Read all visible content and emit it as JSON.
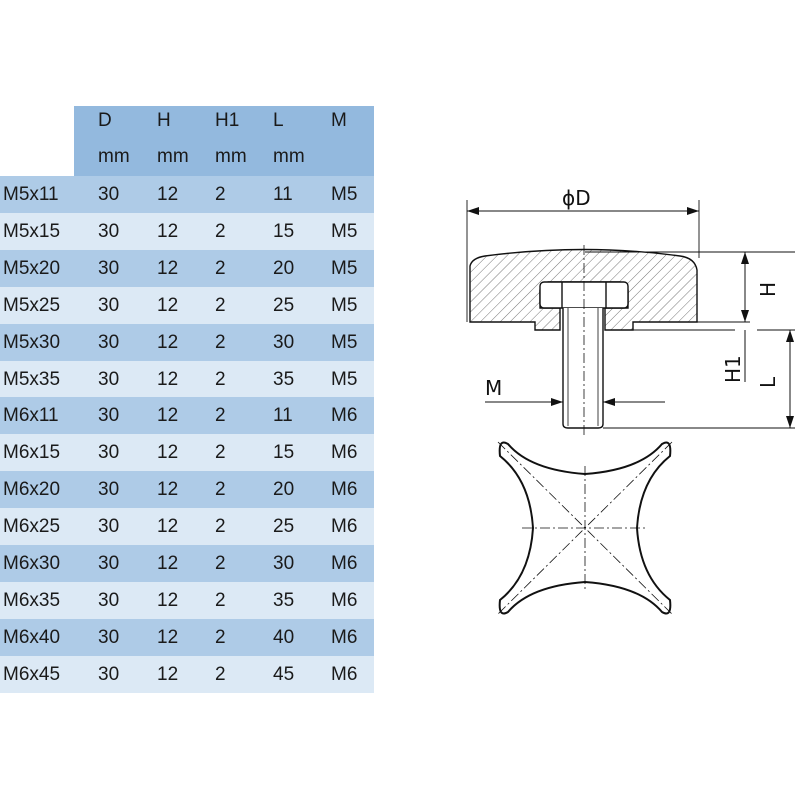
{
  "table": {
    "columns": [
      {
        "name": "D",
        "unit": "mm"
      },
      {
        "name": "H",
        "unit": "mm"
      },
      {
        "name": "H1",
        "unit": "mm"
      },
      {
        "name": "L",
        "unit": "mm"
      },
      {
        "name": "M",
        "unit": ""
      }
    ],
    "rows": [
      [
        "M5x11",
        "30",
        "12",
        "2",
        "11",
        "M5"
      ],
      [
        "M5x15",
        "30",
        "12",
        "2",
        "15",
        "M5"
      ],
      [
        "M5x20",
        "30",
        "12",
        "2",
        "20",
        "M5"
      ],
      [
        "M5x25",
        "30",
        "12",
        "2",
        "25",
        "M5"
      ],
      [
        "M5x30",
        "30",
        "12",
        "2",
        "30",
        "M5"
      ],
      [
        "M5x35",
        "30",
        "12",
        "2",
        "35",
        "M5"
      ],
      [
        "M6x11",
        "30",
        "12",
        "2",
        "11",
        "M6"
      ],
      [
        "M6x15",
        "30",
        "12",
        "2",
        "15",
        "M6"
      ],
      [
        "M6x20",
        "30",
        "12",
        "2",
        "20",
        "M6"
      ],
      [
        "M6x25",
        "30",
        "12",
        "2",
        "25",
        "M6"
      ],
      [
        "M6x30",
        "30",
        "12",
        "2",
        "30",
        "M6"
      ],
      [
        "M6x35",
        "30",
        "12",
        "2",
        "35",
        "M6"
      ],
      [
        "M6x40",
        "30",
        "12",
        "2",
        "40",
        "M6"
      ],
      [
        "M6x45",
        "30",
        "12",
        "2",
        "45",
        "M6"
      ]
    ],
    "colors": {
      "header": "#93b9de",
      "row_dark": "#aecbe7",
      "row_light": "#dce9f5"
    }
  },
  "drawing": {
    "labels": {
      "diameter": "ϕD",
      "height": "H",
      "h1": "H1",
      "length": "L",
      "thread": "M"
    }
  }
}
